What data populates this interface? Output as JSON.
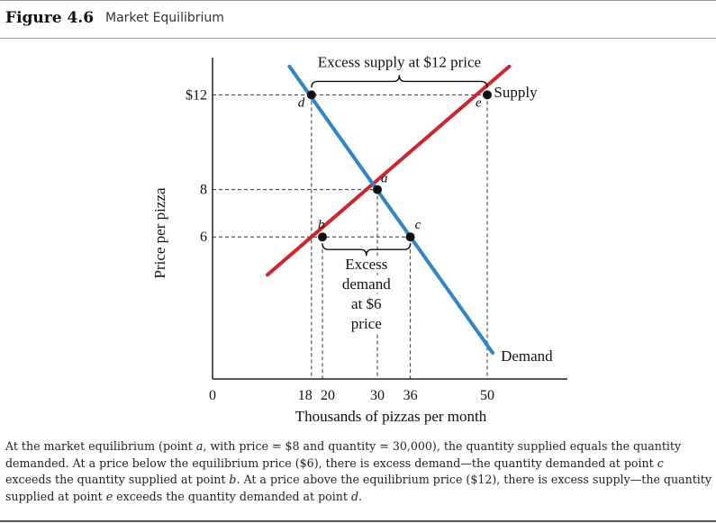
{
  "header": {
    "figure_label": "Figure 4.6",
    "figure_title": "Market Equilibrium"
  },
  "chart_data": {
    "type": "line",
    "title": "",
    "xlabel": "Thousands of pizzas per month",
    "ylabel": "Price per pizza",
    "xlim": [
      0,
      62
    ],
    "ylim": [
      0,
      14
    ],
    "x_ticks": [
      {
        "value": 0,
        "label": "0"
      },
      {
        "value": 18,
        "label": "18"
      },
      {
        "value": 20,
        "label": "20"
      },
      {
        "value": 30,
        "label": "30"
      },
      {
        "value": 36,
        "label": "36"
      },
      {
        "value": 50,
        "label": "50"
      }
    ],
    "y_ticks": [
      {
        "value": 6,
        "label": "6"
      },
      {
        "value": 8,
        "label": "8"
      },
      {
        "value": 12,
        "label": "$12"
      }
    ],
    "series": [
      {
        "name": "Supply",
        "color": "#d2232a",
        "x": [
          10,
          54
        ],
        "y": [
          4.4,
          13.2
        ]
      },
      {
        "name": "Demand",
        "color": "#2e86c8",
        "x": [
          14,
          51
        ],
        "y": [
          13.2,
          1.1
        ]
      }
    ],
    "points": [
      {
        "label": "a",
        "x": 30,
        "y": 8
      },
      {
        "label": "b",
        "x": 20,
        "y": 6
      },
      {
        "label": "c",
        "x": 36,
        "y": 6
      },
      {
        "label": "d",
        "x": 18,
        "y": 12
      },
      {
        "label": "e",
        "x": 50,
        "y": 12
      }
    ],
    "annotations": {
      "excess_supply": "Excess supply at $12 price",
      "excess_demand": [
        "Excess",
        "demand",
        "at $6",
        "price"
      ]
    },
    "grid": false
  },
  "caption": {
    "s1": "At the market equilibrium (point ",
    "s2": "a",
    "s3": ", with price = $8 and quantity = 30,000), the quantity supplied equals the quantity demanded. At a price below the equilibrium price ($6), there is excess demand—the quantity demanded at point ",
    "s4": "c",
    "s5": " exceeds the quantity supplied at point ",
    "s6": "b",
    "s7": ". At a price above the equilibrium price ($12), there is excess supply—the quantity supplied at point ",
    "s8": "e",
    "s9": " exceeds the quantity demanded at point ",
    "s10": "d",
    "s11": "."
  }
}
